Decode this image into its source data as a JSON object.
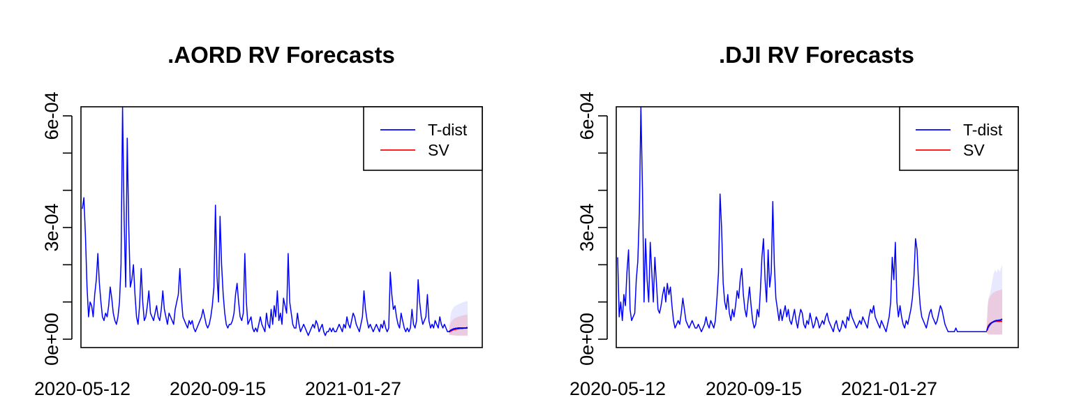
{
  "panels": [
    {
      "title": ".AORD RV Forecasts",
      "legend": [
        {
          "label": "T-dist",
          "color": "#0000ff"
        },
        {
          "label": "SV",
          "color": "#ff0000"
        }
      ],
      "y_ticks": [
        {
          "value": 0,
          "label": "0e+00"
        },
        {
          "value": 0.0003,
          "label": "3e-04"
        },
        {
          "value": 0.0006,
          "label": "6e-04"
        }
      ],
      "x_tick_labels": [
        "2020-05-12",
        "2020-09-15",
        "2021-01-27"
      ]
    },
    {
      "title": ".DJI RV Forecasts",
      "legend": [
        {
          "label": "T-dist",
          "color": "#0000ff"
        },
        {
          "label": "SV",
          "color": "#ff0000"
        }
      ],
      "y_ticks": [
        {
          "value": 0,
          "label": "0e+00"
        },
        {
          "value": 0.0003,
          "label": "3e-04"
        },
        {
          "value": 0.0006,
          "label": "6e-04"
        }
      ],
      "x_tick_labels": [
        "2020-05-12",
        "2020-09-15",
        "2021-01-27"
      ]
    }
  ],
  "chart_data": [
    {
      "type": "line",
      "title": ".AORD RV Forecasts",
      "xlabel": "",
      "ylabel": "",
      "ylim": [
        0,
        0.00062
      ],
      "x_tick_labels": [
        "2020-05-12",
        "2020-09-15",
        "2021-01-27"
      ],
      "x_tick_index": [
        0,
        87,
        175
      ],
      "n_observed": 233,
      "observed": [
        0.00035,
        0.00038,
        0.00028,
        0.00014,
        6e-05,
        0.0001,
        9e-05,
        6e-05,
        0.00012,
        0.00016,
        0.00023,
        0.00015,
        0.0001,
        6e-05,
        5e-05,
        7e-05,
        6e-05,
        9e-05,
        0.00014,
        0.00011,
        7e-05,
        5e-05,
        4e-05,
        6e-05,
        0.0001,
        0.0002,
        0.00063,
        0.00032,
        0.00014,
        0.00054,
        0.0003,
        0.00014,
        0.00016,
        0.0002,
        0.00012,
        6e-05,
        4e-05,
        9e-05,
        0.00019,
        0.0001,
        5e-05,
        6e-05,
        9e-05,
        0.00013,
        7e-05,
        6e-05,
        5e-05,
        7e-05,
        9e-05,
        6e-05,
        5e-05,
        8e-05,
        0.00013,
        8e-05,
        6e-05,
        4e-05,
        7e-05,
        6e-05,
        5e-05,
        4e-05,
        8e-05,
        0.0001,
        0.00012,
        0.00019,
        0.00011,
        6e-05,
        5e-05,
        4e-05,
        3e-05,
        5e-05,
        4e-05,
        5e-05,
        3e-05,
        2e-05,
        3e-05,
        4e-05,
        5e-05,
        6e-05,
        8e-05,
        6e-05,
        4e-05,
        3e-05,
        4e-05,
        6e-05,
        9e-05,
        0.00014,
        0.00036,
        0.00017,
        0.0001,
        0.00033,
        0.0002,
        0.00012,
        7e-05,
        4e-05,
        3e-05,
        4e-05,
        4e-05,
        5e-05,
        7e-05,
        0.00012,
        0.00015,
        0.0001,
        6e-05,
        5e-05,
        7e-05,
        0.00023,
        0.0001,
        4e-05,
        5e-05,
        6e-05,
        3e-05,
        2e-05,
        3e-05,
        2e-05,
        4e-05,
        6e-05,
        4e-05,
        3e-05,
        2e-05,
        7e-05,
        4e-05,
        3e-05,
        8e-05,
        4e-05,
        9e-05,
        6e-05,
        0.00013,
        5e-05,
        7e-05,
        4e-05,
        0.00011,
        9e-05,
        7e-05,
        0.00023,
        0.0001,
        7e-05,
        4e-05,
        3e-05,
        3e-05,
        7e-05,
        4e-05,
        2e-05,
        3e-05,
        4e-05,
        3e-05,
        2e-05,
        1e-05,
        2e-05,
        3e-05,
        4e-05,
        3e-05,
        5e-05,
        4e-05,
        2e-05,
        3e-05,
        4e-05,
        2e-05,
        1e-05,
        2e-05,
        2e-05,
        3e-05,
        2e-05,
        3e-05,
        2e-05,
        2e-05,
        3e-05,
        4e-05,
        3e-05,
        2e-05,
        4e-05,
        3e-05,
        6e-05,
        4e-05,
        3e-05,
        5e-05,
        7e-05,
        6e-05,
        4e-05,
        3e-05,
        2e-05,
        4e-05,
        6e-05,
        0.00013,
        8e-05,
        5e-05,
        3e-05,
        4e-05,
        3e-05,
        2e-05,
        3e-05,
        4e-05,
        3e-05,
        2e-05,
        4e-05,
        3e-05,
        5e-05,
        3e-05,
        2e-05,
        3e-05,
        0.00018,
        0.00012,
        8e-05,
        9e-05,
        6e-05,
        4e-05,
        3e-05,
        7e-05,
        5e-05,
        3e-05,
        2e-05,
        3e-05,
        2e-05,
        3e-05,
        8e-05,
        4e-05,
        3e-05,
        5e-05,
        0.00016,
        0.0001,
        6e-05,
        4e-05,
        5e-05,
        6e-05,
        0.00012,
        5e-05,
        3e-05,
        4e-05,
        3e-05,
        5e-05,
        4e-05,
        3e-05,
        6e-05,
        4e-05,
        3e-05,
        4e-05,
        3e-05,
        2e-05,
        2e-05
      ],
      "series": [
        {
          "name": "T-dist",
          "color": "#0000ff",
          "values": [
            2e-05,
            2.2e-05,
            2.4e-05,
            2.5e-05,
            2.6e-05,
            2.7e-05,
            2.8e-05,
            2.8e-05,
            2.9e-05,
            2.9e-05,
            2.9e-05,
            3e-05,
            3e-05,
            3e-05,
            3e-05,
            3e-05,
            3e-05,
            3e-05,
            3e-05,
            3e-05,
            3e-05,
            3e-05,
            3.1e-05,
            3.1e-05
          ]
        },
        {
          "name": "SV",
          "color": "#ff0000",
          "values": [
            1.9e-05,
            2.1e-05,
            2.2e-05,
            2.3e-05,
            2.4e-05,
            2.5e-05,
            2.6e-05,
            2.6e-05,
            2.7e-05,
            2.7e-05,
            2.8e-05,
            2.8e-05,
            2.8e-05,
            2.9e-05,
            2.9e-05,
            2.9e-05,
            2.9e-05,
            2.9e-05,
            3e-05,
            3e-05,
            3e-05,
            3e-05,
            3e-05,
            3e-05
          ]
        }
      ],
      "bands": [
        {
          "name": "T-dist",
          "color": "#0000ff",
          "lower": [
            1.2e-05,
            1.2e-05,
            1.1e-05,
            1.1e-05,
            1.1e-05,
            1.1e-05,
            1.1e-05,
            1e-05,
            1e-05,
            1e-05,
            1e-05,
            1e-05,
            1e-05,
            1e-05,
            1e-05,
            1e-05,
            1e-05,
            1e-05,
            1e-05,
            1e-05,
            1e-05,
            1e-05,
            1e-05,
            1e-05
          ],
          "upper": [
            3e-05,
            5e-05,
            6.5e-05,
            7.5e-05,
            8e-05,
            8.3e-05,
            8.6e-05,
            8.8e-05,
            9e-05,
            9.1e-05,
            9.2e-05,
            9.3e-05,
            9.4e-05,
            9.5e-05,
            9.6e-05,
            9.7e-05,
            9.8e-05,
            9.9e-05,
            0.0001,
            0.0001,
            0.000101,
            0.000102,
            0.000102,
            0.000103
          ]
        },
        {
          "name": "SV",
          "color": "#ff0000",
          "lower": [
            1.2e-05,
            1.1e-05,
            1.1e-05,
            1.1e-05,
            1e-05,
            1e-05,
            1e-05,
            1e-05,
            1e-05,
            1e-05,
            9e-06,
            9e-06,
            9e-06,
            9e-06,
            9e-06,
            9e-06,
            9e-06,
            9e-06,
            9e-06,
            9e-06,
            9e-06,
            9e-06,
            9e-06,
            9e-06
          ],
          "upper": [
            2.8e-05,
            3.8e-05,
            4.4e-05,
            4.8e-05,
            5.1e-05,
            5.3e-05,
            5.5e-05,
            5.6e-05,
            5.7e-05,
            5.8e-05,
            5.9e-05,
            6e-05,
            6.1e-05,
            6.2e-05,
            6.2e-05,
            6.3e-05,
            6.3e-05,
            6.4e-05,
            6.4e-05,
            6.5e-05,
            6.5e-05,
            6.5e-05,
            6.6e-05,
            6.6e-05
          ]
        }
      ],
      "legend_position": "top-right",
      "grid": false
    },
    {
      "type": "line",
      "title": ".DJI RV Forecasts",
      "xlabel": "",
      "ylabel": "",
      "ylim": [
        0,
        0.00062
      ],
      "x_tick_labels": [
        "2020-05-12",
        "2020-09-15",
        "2021-01-27"
      ],
      "x_tick_index": [
        0,
        87,
        175
      ],
      "n_observed": 233,
      "observed": [
        0.00022,
        6e-05,
        0.0001,
        5e-05,
        0.00012,
        9e-05,
        0.00018,
        0.00024,
        8e-05,
        5e-05,
        6e-05,
        7e-05,
        0.00016,
        0.00021,
        0.00034,
        0.00065,
        0.0004,
        0.0001,
        0.00027,
        0.00016,
        0.0001,
        0.00026,
        0.00018,
        0.0001,
        0.00022,
        0.00015,
        8e-05,
        7e-05,
        9e-05,
        0.00012,
        0.00014,
        0.0001,
        0.00015,
        0.00012,
        0.00014,
        9e-05,
        5e-05,
        3e-05,
        4e-05,
        5e-05,
        4e-05,
        7e-05,
        0.00011,
        8e-05,
        5e-05,
        4e-05,
        3e-05,
        4e-05,
        5e-05,
        4e-05,
        3e-05,
        3e-05,
        4e-05,
        3e-05,
        2e-05,
        3e-05,
        4e-05,
        6e-05,
        4e-05,
        3e-05,
        5e-05,
        4e-05,
        3e-05,
        5e-05,
        0.00011,
        0.00018,
        0.00039,
        0.0003,
        0.00015,
        0.0001,
        8e-05,
        0.00012,
        7e-05,
        5e-05,
        8e-05,
        6e-05,
        9e-05,
        0.00013,
        0.00011,
        0.00016,
        0.00019,
        0.00012,
        8e-05,
        6e-05,
        0.0001,
        0.00014,
        9e-05,
        5e-05,
        3e-05,
        4e-05,
        8e-05,
        6e-05,
        0.00013,
        0.00022,
        0.00027,
        0.00016,
        0.0001,
        0.00024,
        0.00014,
        0.00018,
        0.00037,
        0.0002,
        0.00011,
        8e-05,
        5e-05,
        8e-05,
        5e-05,
        7e-05,
        9e-05,
        6e-05,
        8e-05,
        5e-05,
        4e-05,
        6e-05,
        8e-05,
        5e-05,
        3e-05,
        6e-05,
        8e-05,
        7e-05,
        4e-05,
        3e-05,
        5e-05,
        4e-05,
        7e-05,
        5e-05,
        3e-05,
        4e-05,
        6e-05,
        5e-05,
        3e-05,
        4e-05,
        5e-05,
        4e-05,
        6e-05,
        7e-05,
        5e-05,
        4e-05,
        3e-05,
        2e-05,
        4e-05,
        5e-05,
        3e-05,
        2e-05,
        3e-05,
        5e-05,
        4e-05,
        3e-05,
        6e-05,
        5e-05,
        8e-05,
        6e-05,
        5e-05,
        4e-05,
        3e-05,
        4e-05,
        5e-05,
        4e-05,
        6e-05,
        5e-05,
        4e-05,
        3e-05,
        6e-05,
        8e-05,
        7e-05,
        9e-05,
        6e-05,
        5e-05,
        4e-05,
        3e-05,
        5e-05,
        4e-05,
        3e-05,
        2e-05,
        4e-05,
        6e-05,
        0.0001,
        0.00022,
        0.00016,
        0.00026,
        0.0001,
        6e-05,
        9e-05,
        6e-05,
        4e-05,
        3e-05,
        5e-05,
        4e-05,
        6e-05,
        8e-05,
        0.00011,
        0.00017,
        0.00027,
        0.00024,
        0.00015,
        9e-05,
        6e-05,
        5e-05,
        4e-05,
        3e-05,
        5e-05,
        7e-05,
        8e-05,
        6e-05,
        5e-05,
        4e-05,
        5e-05,
        7e-05,
        9e-05,
        8e-05,
        6e-05,
        4e-05,
        3e-05,
        2e-05,
        2e-05,
        2e-05,
        2e-05,
        2e-05,
        3e-05,
        2e-05,
        2e-05,
        2e-05,
        2e-05,
        2e-05,
        2e-05,
        2e-05,
        2e-05,
        2e-05,
        2e-05,
        2e-05,
        2e-05,
        2e-05,
        2e-05,
        2e-05,
        2e-05,
        2e-05,
        2e-05,
        2e-05,
        2e-05
      ],
      "series": [
        {
          "name": "T-dist",
          "color": "#0000ff",
          "values": [
            2.3e-05,
            2.8e-05,
            3.2e-05,
            3.5e-05,
            3.8e-05,
            4e-05,
            4.2e-05,
            4.4e-05,
            4.5e-05,
            4.6e-05,
            4.7e-05,
            4.8e-05,
            4.9e-05,
            4.9e-05,
            5e-05,
            5e-05,
            5e-05,
            5e-05,
            5.1e-05,
            5.1e-05,
            5.1e-05,
            5.2e-05,
            5.3e-05,
            5.4e-05
          ]
        },
        {
          "name": "SV",
          "color": "#ff0000",
          "values": [
            2.2e-05,
            3e-05,
            3.5e-05,
            3.8e-05,
            4e-05,
            4.2e-05,
            4.3e-05,
            4.4e-05,
            4.5e-05,
            4.6e-05,
            4.7e-05,
            4.7e-05,
            4.8e-05,
            4.8e-05,
            4.8e-05,
            4.8e-05,
            4.8e-05,
            4.8e-05,
            4.8e-05,
            4.8e-05,
            4.8e-05,
            4.8e-05,
            4.8e-05,
            4.8e-05
          ]
        }
      ],
      "bands": [
        {
          "name": "T-dist",
          "color": "#0000ff",
          "lower": [
            1.8e-05,
            1.6e-05,
            1.5e-05,
            1.4e-05,
            1.4e-05,
            1.3e-05,
            1.3e-05,
            1.3e-05,
            1.3e-05,
            1.3e-05,
            1.3e-05,
            1.3e-05,
            1.3e-05,
            1.3e-05,
            1.3e-05,
            1.3e-05,
            1.3e-05,
            1.3e-05,
            1.3e-05,
            1.3e-05,
            1.3e-05,
            1.3e-05,
            1.3e-05,
            1.4e-05
          ],
          "upper": [
            4e-05,
            8.5e-05,
            0.000105,
            0.000115,
            0.00012,
            0.000125,
            0.000135,
            0.000145,
            0.000155,
            0.000165,
            0.000175,
            0.00018,
            0.000185,
            0.000185,
            0.00018,
            0.00018,
            0.000185,
            0.00019,
            0.000185,
            0.00018,
            0.000185,
            0.00019,
            0.000195,
            0.0002
          ]
        },
        {
          "name": "SV",
          "color": "#ff0000",
          "lower": [
            1.6e-05,
            1.4e-05,
            1.3e-05,
            1.2e-05,
            1.2e-05,
            1.2e-05,
            1.2e-05,
            1.2e-05,
            1.2e-05,
            1.2e-05,
            1.2e-05,
            1.2e-05,
            1.2e-05,
            1.2e-05,
            1.2e-05,
            1.2e-05,
            1.2e-05,
            1.2e-05,
            1.2e-05,
            1.2e-05,
            1.2e-05,
            1.2e-05,
            1.2e-05,
            1.2e-05
          ],
          "upper": [
            4e-05,
            8.5e-05,
            0.0001,
            0.000107,
            0.000112,
            0.000115,
            0.000118,
            0.00012,
            0.000122,
            0.000124,
            0.000125,
            0.000126,
            0.000127,
            0.000128,
            0.000129,
            0.00013,
            0.00013,
            0.000131,
            0.000131,
            0.000132,
            0.000132,
            0.000133,
            0.000133,
            0.000134
          ]
        }
      ],
      "legend_position": "top-right",
      "grid": false
    }
  ]
}
